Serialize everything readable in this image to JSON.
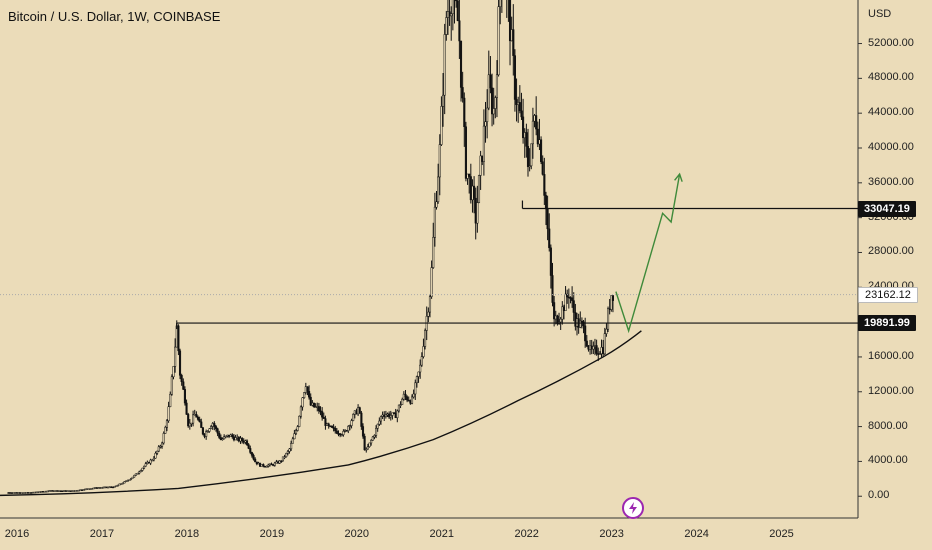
{
  "title": "Bitcoin / U.S. Dollar, 1W, COINBASE",
  "currency": "USD",
  "colors": {
    "background": "#ebdcb9",
    "candle": "#111111",
    "arrow": "#3f8a3a",
    "axis": "#222222"
  },
  "price_labels": [
    {
      "value": 33047.19,
      "label": "33047.19",
      "style": "dark"
    },
    {
      "value": 23162.12,
      "label": "23162.12",
      "style": "light"
    },
    {
      "value": 19891.99,
      "label": "19891.99",
      "style": "dark"
    }
  ],
  "chart_data": {
    "type": "candlestick",
    "xlabel": "",
    "ylabel": "",
    "x_ticks": [
      "2016",
      "2017",
      "2018",
      "2019",
      "2020",
      "2021",
      "2022",
      "2023",
      "2024",
      "2025"
    ],
    "y_ticks": [
      0,
      4000,
      8000,
      12000,
      16000,
      20000,
      24000,
      28000,
      32000,
      36000,
      40000,
      44000,
      48000,
      52000
    ],
    "y_tick_labels": [
      "0.00",
      "4000.00",
      "8000.00",
      "12000.00",
      "16000.00",
      "20000.00",
      "24000.00",
      "28000.00",
      "32000.00",
      "36000.00",
      "40000.00",
      "44000.00",
      "48000.00",
      "52000.00"
    ],
    "xlim": [
      2015.9,
      2026.0
    ],
    "ylim": [
      -2500,
      57000
    ],
    "series_close": [
      [
        2016.0,
        430
      ],
      [
        2016.25,
        420
      ],
      [
        2016.5,
        650
      ],
      [
        2016.75,
        620
      ],
      [
        2017.0,
        950
      ],
      [
        2017.25,
        1100
      ],
      [
        2017.4,
        1800
      ],
      [
        2017.5,
        2500
      ],
      [
        2017.6,
        3500
      ],
      [
        2017.7,
        4300
      ],
      [
        2017.8,
        6000
      ],
      [
        2017.85,
        8000
      ],
      [
        2017.9,
        11000
      ],
      [
        2017.95,
        16000
      ],
      [
        2017.98,
        19500
      ],
      [
        2018.02,
        14000
      ],
      [
        2018.08,
        11000
      ],
      [
        2018.12,
        8000
      ],
      [
        2018.2,
        9500
      ],
      [
        2018.3,
        7000
      ],
      [
        2018.4,
        8500
      ],
      [
        2018.5,
        6500
      ],
      [
        2018.6,
        7000
      ],
      [
        2018.7,
        6500
      ],
      [
        2018.8,
        6300
      ],
      [
        2018.9,
        4000
      ],
      [
        2018.97,
        3500
      ],
      [
        2019.1,
        3600
      ],
      [
        2019.2,
        4000
      ],
      [
        2019.3,
        5200
      ],
      [
        2019.4,
        8000
      ],
      [
        2019.45,
        11000
      ],
      [
        2019.5,
        13000
      ],
      [
        2019.55,
        10500
      ],
      [
        2019.65,
        10000
      ],
      [
        2019.75,
        8000
      ],
      [
        2019.85,
        7500
      ],
      [
        2019.95,
        7200
      ],
      [
        2020.05,
        9000
      ],
      [
        2020.12,
        10200
      ],
      [
        2020.2,
        5000
      ],
      [
        2020.3,
        7000
      ],
      [
        2020.4,
        9500
      ],
      [
        2020.55,
        9200
      ],
      [
        2020.65,
        11500
      ],
      [
        2020.75,
        11000
      ],
      [
        2020.85,
        15000
      ],
      [
        2020.9,
        19000
      ],
      [
        2020.97,
        24000
      ],
      [
        2021.02,
        33000
      ],
      [
        2021.08,
        40000
      ],
      [
        2021.15,
        55000
      ],
      [
        2021.22,
        58000
      ],
      [
        2021.3,
        54000
      ],
      [
        2021.38,
        38000
      ],
      [
        2021.45,
        35000
      ],
      [
        2021.5,
        32000
      ],
      [
        2021.58,
        40000
      ],
      [
        2021.65,
        47000
      ],
      [
        2021.72,
        44000
      ],
      [
        2021.8,
        61000
      ],
      [
        2021.88,
        57000
      ],
      [
        2021.96,
        47000
      ],
      [
        2022.05,
        42000
      ],
      [
        2022.12,
        38000
      ],
      [
        2022.2,
        44000
      ],
      [
        2022.28,
        39000
      ],
      [
        2022.35,
        30000
      ],
      [
        2022.42,
        20000
      ],
      [
        2022.5,
        21000
      ],
      [
        2022.6,
        23500
      ],
      [
        2022.68,
        20000
      ],
      [
        2022.76,
        19500
      ],
      [
        2022.85,
        16500
      ],
      [
        2022.92,
        16800
      ],
      [
        2023.0,
        17000
      ],
      [
        2023.06,
        21000
      ],
      [
        2023.1,
        23500
      ],
      [
        2023.13,
        23162
      ]
    ],
    "support_line": {
      "value": 19891.99,
      "from": 2017.98,
      "to": 2026.0
    },
    "resistance_line": {
      "value": 33047.19,
      "from": 2022.05,
      "to": 2026.0
    },
    "trend_curve": [
      [
        2015.9,
        100
      ],
      [
        2018,
        900
      ],
      [
        2020,
        3600
      ],
      [
        2021,
        6500
      ],
      [
        2022,
        11000
      ],
      [
        2023,
        16000
      ],
      [
        2023.45,
        19000
      ]
    ],
    "projection_arrow": [
      [
        2023.15,
        23500
      ],
      [
        2023.3,
        19000
      ],
      [
        2023.7,
        32500
      ],
      [
        2023.8,
        31500
      ],
      [
        2023.9,
        37000
      ]
    ]
  }
}
